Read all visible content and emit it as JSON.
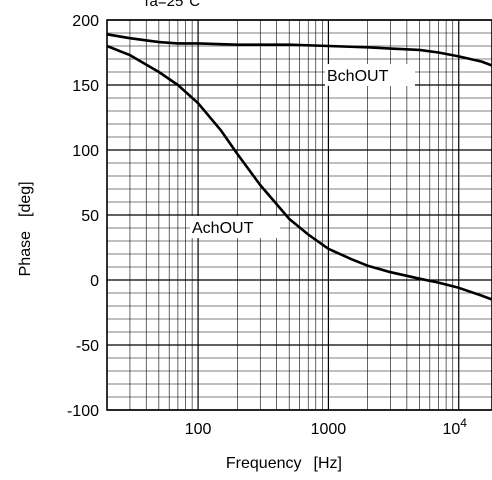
{
  "chart_data": {
    "type": "line",
    "title": "Ta=25°C",
    "xlabel": "Frequency",
    "xunit": "[Hz]",
    "ylabel": "Phase",
    "yunit": "[deg]",
    "x_scale": "log",
    "xlim": [
      20,
      18000
    ],
    "ylim": [
      -100,
      200
    ],
    "yticks": [
      -100,
      -50,
      0,
      50,
      100,
      150,
      200
    ],
    "xticks": [
      {
        "value": 100,
        "label": "100"
      },
      {
        "value": 1000,
        "label": "1000"
      },
      {
        "value": 10000,
        "label": "10",
        "exponent": "4"
      }
    ],
    "grid": true,
    "line_color": "#000000",
    "series": [
      {
        "name": "AchOUT",
        "x": [
          20,
          30,
          50,
          70,
          100,
          150,
          200,
          300,
          500,
          700,
          1000,
          1500,
          2000,
          3000,
          5000,
          7000,
          10000,
          15000,
          18000
        ],
        "y": [
          180,
          173,
          160,
          150,
          136,
          115,
          97,
          73,
          47,
          35,
          24,
          16,
          11,
          6,
          1,
          -2,
          -6,
          -12,
          -15
        ]
      },
      {
        "name": "BchOUT",
        "x": [
          20,
          30,
          50,
          70,
          100,
          200,
          500,
          1000,
          2000,
          3000,
          5000,
          7000,
          10000,
          15000,
          18000
        ],
        "y": [
          189,
          186,
          183,
          182,
          182,
          181,
          181,
          180,
          179,
          178,
          177,
          175,
          172,
          168,
          165
        ]
      }
    ],
    "annotations": [
      {
        "text": "AchOUT",
        "series": "AchOUT"
      },
      {
        "text": "BchOUT",
        "series": "BchOUT"
      }
    ]
  }
}
